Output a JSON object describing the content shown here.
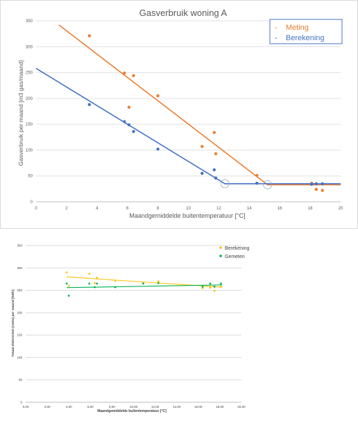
{
  "chart_data": [
    {
      "type": "scatter",
      "title": "Gasverbruik woning A",
      "xlabel": "Maandgemiddelde buitentemperatuur [°C]",
      "ylabel": "Gasverbruik per maand [m3 gas/maand]",
      "xlim": [
        0,
        20
      ],
      "ylim": [
        0,
        350
      ],
      "xticks": [
        "0",
        "2",
        "4",
        "6",
        "8",
        "10",
        "12",
        "14",
        "16",
        "18",
        "20"
      ],
      "yticks": [
        "0",
        "50",
        "100",
        "150",
        "200",
        "250",
        "300",
        "350"
      ],
      "grid": "horizontal",
      "legend": "top-right",
      "series": [
        {
          "name": "Meting",
          "legend_label": "-    Meting",
          "color": "#ed7d31",
          "points": [
            [
              3.5,
              321
            ],
            [
              5.8,
              249
            ],
            [
              6.1,
              183
            ],
            [
              6.4,
              244
            ],
            [
              8.0,
              205
            ],
            [
              10.9,
              107
            ],
            [
              11.7,
              134
            ],
            [
              11.8,
              93
            ],
            [
              14.5,
              51
            ],
            [
              18.1,
              36
            ],
            [
              18.4,
              24
            ],
            [
              18.8,
              22
            ]
          ],
          "fit": [
            [
              1.5,
              342
            ],
            [
              15.2,
              33
            ],
            [
              20,
              33
            ]
          ]
        },
        {
          "name": "Berekening",
          "legend_label": "-    Berekening",
          "color": "#4472c4",
          "points": [
            [
              3.5,
              188
            ],
            [
              5.8,
              155
            ],
            [
              6.1,
              149
            ],
            [
              6.4,
              136
            ],
            [
              8.0,
              102
            ],
            [
              10.9,
              55
            ],
            [
              11.7,
              62
            ],
            [
              11.8,
              46
            ],
            [
              14.5,
              36
            ],
            [
              18.1,
              34
            ],
            [
              18.4,
              35
            ],
            [
              18.8,
              35
            ]
          ],
          "fit": [
            [
              0,
              258
            ],
            [
              12.4,
              35
            ],
            [
              20,
              35
            ]
          ]
        }
      ],
      "annotations": [
        "circle at knee of Berekening line",
        "circle at knee of Meting line"
      ]
    },
    {
      "type": "scatter",
      "title": "",
      "xlabel": "Maandgemiddelde buitentemperatuur [°C]",
      "ylabel": "Totaal elektriciteit (netto) per maand [kWh]",
      "xlim": [
        0,
        20
      ],
      "ylim": [
        0,
        350
      ],
      "xticks": [
        "0,00",
        "2,00",
        "4,00",
        "6,00",
        "8,00",
        "10,00",
        "12,00",
        "14,00",
        "16,00",
        "18,00",
        "20,00"
      ],
      "yticks": [
        "0",
        "50",
        "100",
        "150",
        "200",
        "250",
        "300",
        "350"
      ],
      "grid": "horizontal",
      "legend": "top-right",
      "series": [
        {
          "name": "Berekening",
          "color": "#ffc000",
          "points": [
            [
              3.8,
              290
            ],
            [
              4.0,
              260
            ],
            [
              5.9,
              287
            ],
            [
              6.4,
              266
            ],
            [
              6.6,
              278
            ],
            [
              8.3,
              271
            ],
            [
              10.9,
              266
            ],
            [
              12.3,
              270
            ],
            [
              16.4,
              255
            ],
            [
              17.1,
              256
            ],
            [
              17.5,
              249
            ],
            [
              18.1,
              258
            ]
          ],
          "fit": [
            [
              3.8,
              280
            ],
            [
              18.2,
              257
            ]
          ]
        },
        {
          "name": "Gemeten",
          "color": "#00b050",
          "points": [
            [
              3.8,
              265
            ],
            [
              4.0,
              238
            ],
            [
              5.9,
              265
            ],
            [
              6.4,
              257
            ],
            [
              6.6,
              265
            ],
            [
              8.3,
              257
            ],
            [
              10.9,
              265
            ],
            [
              12.3,
              266
            ],
            [
              16.4,
              258
            ],
            [
              17.1,
              265
            ],
            [
              17.5,
              258
            ],
            [
              18.1,
              265
            ]
          ],
          "fit": [
            [
              3.8,
              256
            ],
            [
              18.2,
              262
            ]
          ]
        }
      ]
    }
  ]
}
